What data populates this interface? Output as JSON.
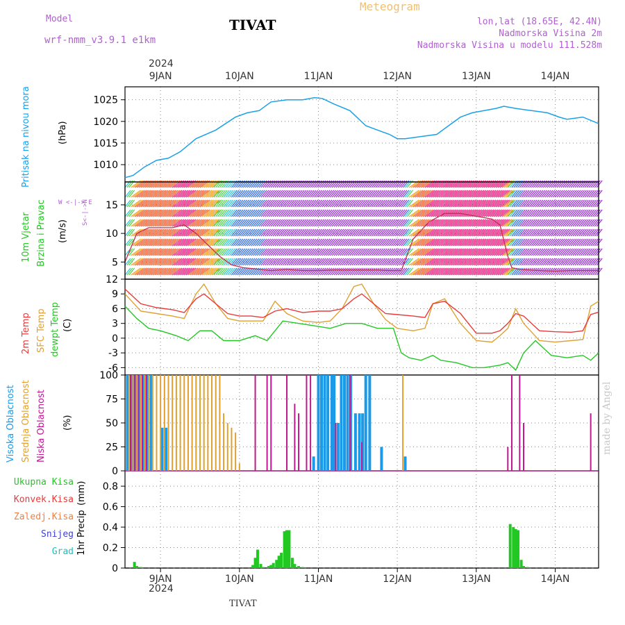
{
  "header": {
    "model_label": "Model",
    "model_value": "wrf-nmm_v3.9.1 e1km",
    "location": "TIVAT",
    "meteogram": "Meteogram",
    "lonlat": "lon,lat (18.65E, 42.4N)",
    "altitude": "Nadmorska Visina 2m",
    "model_altitude": "Nadmorska Visina u modelu 111.528m",
    "year_top": "2024",
    "year_bottom": "2024",
    "footer_location": "TIVAT",
    "watermark": "made by Angel"
  },
  "colors": {
    "pressure": "#1aa0e8",
    "temp2m": "#e83a3a",
    "sfc": "#e0a030",
    "dewpt": "#22c822",
    "high_cloud": "#1a9ae8",
    "mid_cloud": "#e0a030",
    "low_cloud": "#c01890",
    "precip": "#22c822",
    "grid": "#888888"
  },
  "chart_data": [
    {
      "type": "line",
      "ylabel_title": "Pritisak na nivou mora",
      "ylabel_unit": "(hPa)",
      "ylim": [
        1006,
        1028
      ],
      "yticks": [
        1010,
        1015,
        1020,
        1025
      ],
      "x_ticks": [
        "9JAN",
        "10JAN",
        "11JAN",
        "12JAN",
        "13JAN",
        "14JAN"
      ],
      "x_day_range": [
        8.55,
        14.55
      ],
      "grid": true,
      "series": [
        {
          "x": [
            8.55,
            8.65,
            8.8,
            8.95,
            9.1,
            9.25,
            9.45,
            9.7,
            9.95,
            10.1,
            10.25,
            10.4,
            10.6,
            10.8,
            10.95,
            11.05,
            11.2,
            11.4,
            11.6,
            11.75,
            11.9,
            12.0,
            12.1,
            12.3,
            12.5,
            12.65,
            12.8,
            12.95,
            13.1,
            13.25,
            13.35,
            13.5,
            13.7,
            13.9,
            14.05,
            14.15,
            14.35,
            14.55
          ],
          "y": [
            1007,
            1007.5,
            1009.5,
            1011,
            1011.5,
            1013,
            1016,
            1018,
            1021,
            1022,
            1022.5,
            1024.5,
            1025,
            1025,
            1025.5,
            1025.3,
            1024,
            1022.5,
            1019,
            1018,
            1017,
            1016,
            1016,
            1016.5,
            1017,
            1019,
            1021,
            1022,
            1022.5,
            1023,
            1023.5,
            1023,
            1022.5,
            1022,
            1021,
            1020.5,
            1021,
            1019.5
          ]
        }
      ]
    },
    {
      "type": "line",
      "ylabel_title": "10m Vjetar",
      "ylabel_title2": "Brzina i Pravac",
      "ylabel_unit": "(m/s)",
      "compass_note": "W <-|-> E",
      "compass_note2": "S<-|->N",
      "ylim": [
        2,
        19
      ],
      "yticks": [
        5,
        10,
        15
      ],
      "grid": true,
      "series": [
        {
          "name": "speed",
          "x": [
            8.55,
            8.7,
            8.85,
            9.0,
            9.15,
            9.3,
            9.45,
            9.6,
            9.75,
            9.9,
            10.05,
            10.2,
            10.4,
            10.6,
            10.8,
            11.0,
            11.2,
            11.4,
            11.6,
            11.75,
            11.9,
            12.05,
            12.2,
            12.4,
            12.6,
            12.8,
            13.0,
            13.2,
            13.3,
            13.4,
            13.45,
            13.55,
            13.8,
            14.0,
            14.2,
            14.4,
            14.55
          ],
          "y": [
            5,
            10,
            11,
            11,
            11,
            11.5,
            10,
            8,
            6,
            4.5,
            4,
            3.8,
            3.5,
            3.7,
            3.5,
            3.5,
            3.6,
            3.6,
            3.6,
            3.6,
            3.5,
            3.5,
            9,
            12,
            13.5,
            13.5,
            13,
            12.5,
            11.5,
            6,
            4,
            3.7,
            3.5,
            3.4,
            3.5,
            3.5,
            3.5
          ]
        }
      ]
    },
    {
      "type": "line",
      "ylabel_title": "2m Temp",
      "ylabel_title2": "SFC Temp",
      "ylabel_title3": "dewpt Temp",
      "ylabel_unit": "(C)",
      "ylim": [
        -7.5,
        12
      ],
      "yticks": [
        -6,
        -3,
        0,
        3,
        6,
        9,
        12
      ],
      "grid": true,
      "series": [
        {
          "name": "2m Temp",
          "x": [
            8.55,
            8.75,
            8.95,
            9.15,
            9.3,
            9.45,
            9.55,
            9.7,
            9.85,
            10.0,
            10.15,
            10.3,
            10.45,
            10.6,
            10.8,
            11.0,
            11.15,
            11.3,
            11.45,
            11.55,
            11.7,
            11.85,
            12.0,
            12.2,
            12.35,
            12.45,
            12.6,
            12.8,
            13.0,
            13.2,
            13.3,
            13.4,
            13.5,
            13.6,
            13.8,
            14.0,
            14.2,
            14.35,
            14.45,
            14.55
          ],
          "y": [
            10,
            7,
            6.2,
            5.8,
            5.2,
            8,
            9,
            7,
            5,
            4.5,
            4.5,
            4.2,
            5.5,
            6,
            5.2,
            5.5,
            5.5,
            6,
            8,
            9,
            7,
            5,
            4.8,
            4.5,
            4.2,
            7,
            7.5,
            5,
            1,
            1,
            1.5,
            3,
            5,
            4.5,
            1.5,
            1.3,
            1.2,
            1.5,
            4.8,
            5.3
          ]
        },
        {
          "name": "SFC Temp",
          "x": [
            8.55,
            8.75,
            8.95,
            9.15,
            9.3,
            9.45,
            9.55,
            9.7,
            9.85,
            10.0,
            10.15,
            10.3,
            10.45,
            10.6,
            10.8,
            11.0,
            11.15,
            11.3,
            11.45,
            11.55,
            11.7,
            11.85,
            12.0,
            12.2,
            12.35,
            12.45,
            12.6,
            12.8,
            13.0,
            13.2,
            13.3,
            13.4,
            13.5,
            13.6,
            13.8,
            14.0,
            14.2,
            14.35,
            14.45,
            14.55
          ],
          "y": [
            9,
            5.5,
            5,
            4.5,
            4,
            9,
            11,
            7,
            4,
            3.5,
            3.5,
            3.5,
            7.5,
            5,
            3.5,
            3.2,
            3.5,
            6,
            10.5,
            11,
            7,
            3.8,
            2,
            1.5,
            2,
            7,
            8,
            3,
            -0.5,
            -0.8,
            0.5,
            2,
            6,
            3,
            -0.5,
            -0.8,
            -0.5,
            -0.3,
            6.5,
            7.5
          ]
        },
        {
          "name": "dewpt Temp",
          "x": [
            8.55,
            8.7,
            8.85,
            9.0,
            9.2,
            9.35,
            9.5,
            9.65,
            9.8,
            10.0,
            10.2,
            10.35,
            10.55,
            10.75,
            10.95,
            11.15,
            11.35,
            11.55,
            11.75,
            11.95,
            12.05,
            12.15,
            12.3,
            12.45,
            12.55,
            12.75,
            12.95,
            13.1,
            13.3,
            13.4,
            13.5,
            13.6,
            13.75,
            13.85,
            13.95,
            14.15,
            14.35,
            14.45,
            14.55
          ],
          "y": [
            6.5,
            4,
            2,
            1.5,
            0.5,
            -0.5,
            1.5,
            1.5,
            -0.5,
            -0.5,
            0.5,
            -0.5,
            3.5,
            3,
            2.5,
            2,
            3,
            3,
            2,
            2,
            -3,
            -4,
            -4.5,
            -3.5,
            -4.5,
            -5,
            -6,
            -6,
            -5.5,
            -5,
            -6.5,
            -3,
            -0.5,
            -2,
            -3.5,
            -4,
            -3.5,
            -4.5,
            -3
          ]
        }
      ]
    },
    {
      "type": "bar",
      "ylabel_title": "Visoka Oblacnost",
      "ylabel_title2": "Srednja Oblacnost",
      "ylabel_title3": "Niska Oblacnost",
      "ylabel_unit": "(%)",
      "ylim": [
        0,
        100
      ],
      "yticks": [
        0,
        25,
        50,
        75,
        100
      ],
      "grid": true,
      "series": [
        {
          "name": "Visoka Oblacnost",
          "x": [
            8.58,
            8.63,
            8.68,
            8.73,
            8.78,
            8.83,
            8.88,
            9.02,
            9.07,
            10.94,
            11.0,
            11.04,
            11.08,
            11.12,
            11.17,
            11.2,
            11.25,
            11.29,
            11.33,
            11.37,
            11.41,
            11.47,
            11.52,
            11.56,
            11.6,
            11.65,
            11.8,
            12.1
          ],
          "y": [
            100,
            100,
            100,
            100,
            100,
            100,
            100,
            45,
            45,
            15,
            100,
            100,
            100,
            100,
            100,
            100,
            50,
            100,
            100,
            100,
            100,
            60,
            60,
            60,
            100,
            100,
            25,
            15
          ]
        },
        {
          "name": "Srednja Oblacnost",
          "x": [
            8.6,
            8.65,
            8.7,
            8.75,
            8.8,
            8.85,
            8.9,
            8.95,
            9.0,
            9.05,
            9.1,
            9.15,
            9.2,
            9.25,
            9.3,
            9.35,
            9.4,
            9.45,
            9.5,
            9.55,
            9.6,
            9.65,
            9.7,
            9.75,
            9.8,
            9.85,
            9.9,
            9.95,
            10.0,
            12.07
          ],
          "y": [
            100,
            100,
            100,
            100,
            100,
            100,
            100,
            100,
            100,
            100,
            100,
            100,
            100,
            100,
            100,
            100,
            100,
            100,
            100,
            100,
            100,
            100,
            100,
            100,
            60,
            50,
            45,
            40,
            8,
            100
          ]
        },
        {
          "name": "Niska Oblacnost",
          "x": [
            8.62,
            8.67,
            8.72,
            8.77,
            8.82,
            10.2,
            10.35,
            10.4,
            10.6,
            10.7,
            10.75,
            10.85,
            10.9,
            11.22,
            11.4,
            11.55,
            13.4,
            13.45,
            13.55,
            13.6,
            14.45
          ],
          "y": [
            100,
            100,
            100,
            100,
            100,
            100,
            100,
            100,
            100,
            70,
            60,
            100,
            100,
            50,
            100,
            30,
            25,
            100,
            100,
            50,
            60
          ]
        }
      ]
    },
    {
      "type": "bar",
      "ylabel_title": "1hr Precip",
      "ylabel_unit": "(mm)",
      "legend": [
        "Ukupna Kisa",
        "Konvek.Kisa",
        "Zaledj.Kisa",
        "Snijeg",
        "Grad"
      ],
      "legend_placement": "left",
      "ylim": [
        0,
        0.95
      ],
      "yticks": [
        0,
        0.2,
        0.4,
        0.6,
        0.8
      ],
      "ytick_labels": [
        "0",
        "0.2",
        "0.4",
        "0.6",
        "0.8"
      ],
      "grid": true,
      "series": [
        {
          "name": "Ukupna Kisa",
          "x": [
            8.67,
            8.7,
            8.75,
            10.17,
            10.2,
            10.23,
            10.27,
            10.3,
            10.37,
            10.4,
            10.43,
            10.47,
            10.5,
            10.53,
            10.57,
            10.6,
            10.63,
            10.67,
            10.7,
            10.75,
            10.8,
            13.43,
            13.47,
            13.5,
            13.53,
            13.57,
            13.6,
            13.65
          ],
          "y": [
            0.06,
            0.02,
            0.01,
            0.03,
            0.1,
            0.18,
            0.04,
            0.01,
            0.02,
            0.03,
            0.05,
            0.08,
            0.12,
            0.15,
            0.36,
            0.37,
            0.37,
            0.1,
            0.04,
            0.02,
            0.01,
            0.43,
            0.4,
            0.38,
            0.37,
            0.08,
            0.02,
            0.01
          ]
        }
      ]
    }
  ]
}
